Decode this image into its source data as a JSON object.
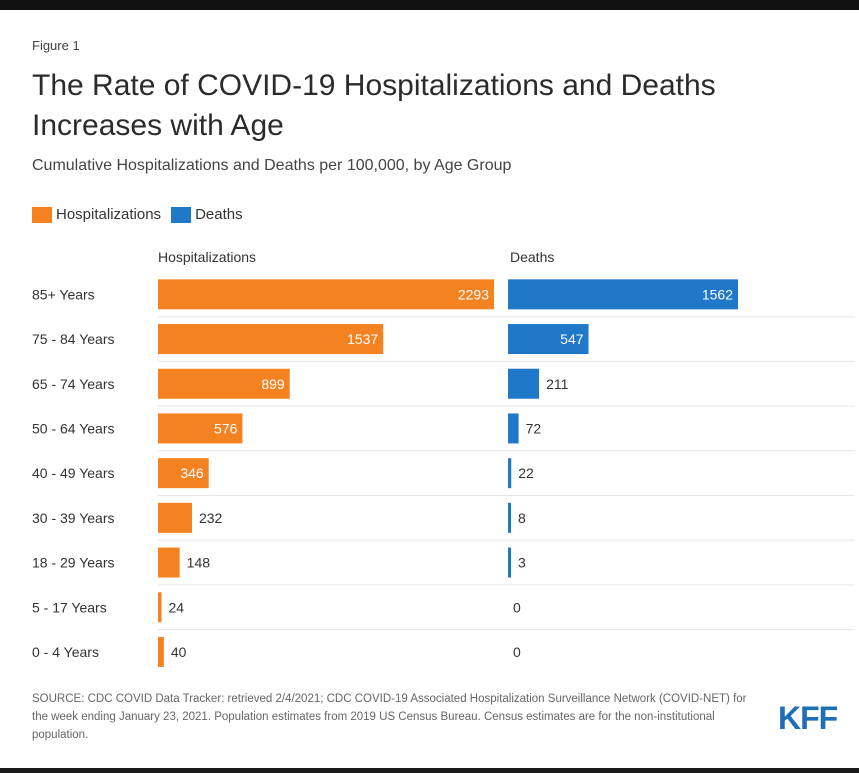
{
  "figure_label": "Figure 1",
  "title": "The Rate of COVID-19 Hospitalizations and Deaths Increases with Age",
  "subtitle": "Cumulative Hospitalizations and Deaths per 100,000, by Age Group",
  "source": "SOURCE: CDC COVID Data Tracker: retrieved 2/4/2021; CDC COVID-19 Associated Hospitalization Surveillance Network (COVID-NET) for the week ending January 23, 2021. Population estimates from 2019 US Census Bureau. Census estimates are for the non-institutional population.",
  "logo": "KFF",
  "colors": {
    "hospitalizations": "#f58220",
    "deaths": "#1f78c8"
  },
  "chart_data": {
    "type": "bar",
    "orientation": "horizontal",
    "categories": [
      "85+ Years",
      "75 - 84 Years",
      "65 - 74 Years",
      "50 - 64 Years",
      "40 - 49 Years",
      "30 - 39 Years",
      "18 - 29 Years",
      "5 - 17 Years",
      "0 - 4 Years"
    ],
    "series": [
      {
        "name": "Hospitalizations",
        "values": [
          2293,
          1537,
          899,
          576,
          346,
          232,
          148,
          24,
          40
        ]
      },
      {
        "name": "Deaths",
        "values": [
          1562,
          547,
          211,
          72,
          22,
          8,
          3,
          0,
          0
        ]
      }
    ],
    "legend": [
      "Hospitalizations",
      "Deaths"
    ],
    "legend_position": "top-left",
    "panel_titles": [
      "Hospitalizations",
      "Deaths"
    ],
    "grid": false
  }
}
